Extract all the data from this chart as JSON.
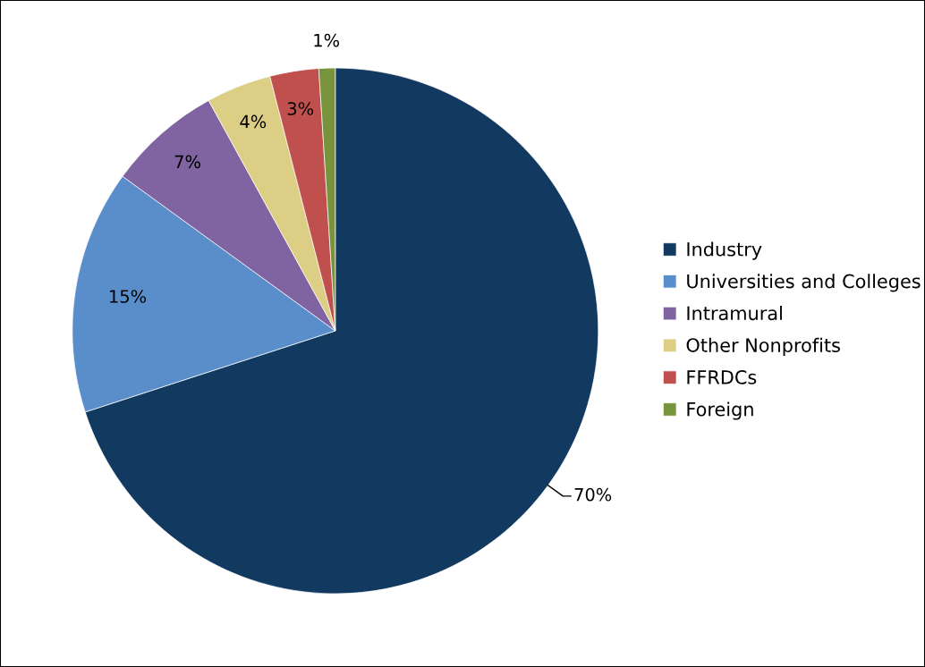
{
  "chart_data": {
    "type": "pie",
    "categories": [
      "Industry",
      "Universities and Colleges",
      "Intramural",
      "Other Nonprofits",
      "FFRDCs",
      "Foreign"
    ],
    "values": [
      70,
      15,
      7,
      4,
      3,
      1
    ],
    "colors": [
      "#12395f",
      "#5a8ecb",
      "#8064a2",
      "#dccf85",
      "#c0504d",
      "#77933c"
    ],
    "value_labels": [
      "70%",
      "15%",
      "7%",
      "4%",
      "3%",
      "1%"
    ],
    "legend": "right"
  }
}
